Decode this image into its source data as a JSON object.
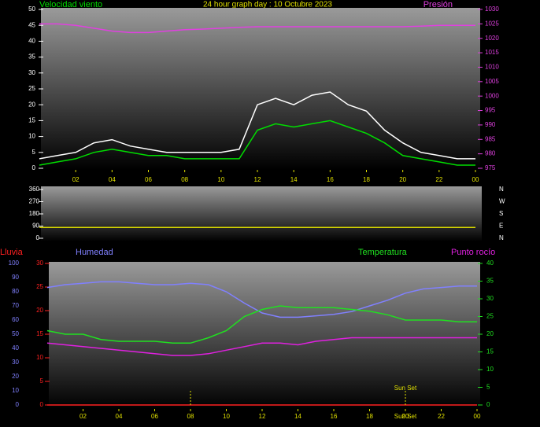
{
  "charts": [
    {
      "type": "line",
      "title": "24 hour graph day : 10 Octubre 2023",
      "x": [
        0,
        1,
        2,
        3,
        4,
        5,
        6,
        7,
        8,
        9,
        10,
        11,
        12,
        13,
        14,
        15,
        16,
        17,
        18,
        19,
        20,
        21,
        22,
        23,
        24
      ],
      "xlim": [
        0,
        24
      ],
      "xticks": [
        {
          "value": 2,
          "label": "02"
        },
        {
          "value": 4,
          "label": "04"
        },
        {
          "value": 6,
          "label": "06"
        },
        {
          "value": 8,
          "label": "08"
        },
        10,
        12,
        14,
        16,
        18,
        20,
        22,
        {
          "value": 24,
          "label": "00"
        }
      ],
      "ylim": [
        0,
        50
      ],
      "yticks": [
        0,
        5,
        10,
        15,
        20,
        25,
        30,
        35,
        40,
        45,
        50
      ],
      "y2lim": [
        975,
        1030
      ],
      "y2ticks": [
        975,
        980,
        985,
        990,
        995,
        1000,
        1005,
        1010,
        1015,
        1020,
        1025,
        1030
      ],
      "grid": false,
      "series": [
        {
          "color": "#ffffff",
          "values": [
            3,
            4,
            5,
            8,
            9,
            7,
            6,
            5,
            5,
            5,
            5,
            6,
            20,
            22,
            20,
            23,
            24,
            20,
            18,
            12,
            8,
            5,
            4,
            3,
            3
          ]
        },
        {
          "name": "Velocidad viento",
          "color": "#00dd00",
          "values": [
            1,
            2,
            3,
            5,
            6,
            5,
            4,
            4,
            3,
            3,
            3,
            3,
            12,
            14,
            13,
            14,
            15,
            13,
            11,
            8,
            4,
            3,
            2,
            1,
            1
          ]
        },
        {
          "name": "Presión",
          "color": "#e040e0",
          "axis": "y2",
          "values": [
            1025,
            1025,
            1024.5,
            1023.5,
            1022.5,
            1022,
            1022,
            1022.5,
            1023,
            1023.2,
            1023.5,
            1023.8,
            1024,
            1024,
            1024,
            1024,
            1024,
            1024,
            1024,
            1024,
            1024,
            1024.2,
            1024.5,
            1024.5,
            1024.5
          ]
        }
      ]
    },
    {
      "type": "line",
      "x": [
        0,
        24
      ],
      "xlim": [
        0,
        24
      ],
      "ylim": [
        0,
        360
      ],
      "yticks": [
        0,
        90,
        180,
        270,
        360
      ],
      "y2lim": [
        0,
        360
      ],
      "y2ticks": [
        {
          "value": 360,
          "label": "N"
        },
        {
          "value": 270,
          "label": "W"
        },
        {
          "value": 180,
          "label": "S"
        },
        {
          "value": 90,
          "label": "E"
        },
        {
          "value": 0,
          "label": "N"
        }
      ],
      "grid": false,
      "series": [
        {
          "color": "#d8d800",
          "values": [
            80,
            80
          ]
        }
      ]
    },
    {
      "type": "line",
      "x": [
        0,
        1,
        2,
        3,
        4,
        5,
        6,
        7,
        8,
        9,
        10,
        11,
        12,
        13,
        14,
        15,
        16,
        17,
        18,
        19,
        20,
        21,
        22,
        23,
        24
      ],
      "xlim": [
        0,
        24
      ],
      "xticks": [
        {
          "value": 2,
          "label": "02"
        },
        {
          "value": 4,
          "label": "04"
        },
        {
          "value": 6,
          "label": "06"
        },
        {
          "value": 8,
          "label": "08"
        },
        10,
        12,
        14,
        16,
        18,
        20,
        22,
        {
          "value": 24,
          "label": "00"
        }
      ],
      "ylim": [
        0,
        30
      ],
      "yticks": [
        0,
        5,
        10,
        15,
        20,
        25,
        30
      ],
      "y2lim": [
        0,
        100
      ],
      "y2ticks": [
        0,
        10,
        20,
        30,
        40,
        50,
        60,
        70,
        80,
        90,
        100
      ],
      "y3lim": [
        0,
        40
      ],
      "y3ticks": [
        0,
        5,
        10,
        15,
        20,
        25,
        30,
        35,
        40
      ],
      "grid": false,
      "series": [
        {
          "name": "Lluvia",
          "color": "#ff2020",
          "values": [
            0,
            0,
            0,
            0,
            0,
            0,
            0,
            0,
            0,
            0,
            0,
            0,
            0,
            0,
            0,
            0,
            0,
            0,
            0,
            0,
            0,
            0,
            0,
            0,
            0
          ]
        },
        {
          "name": "Humedad",
          "color": "#8080ff",
          "axis": "y2",
          "values": [
            83,
            85,
            86,
            87,
            87,
            86,
            85,
            85,
            86,
            85,
            80,
            72,
            65,
            62,
            62,
            63,
            64,
            66,
            70,
            74,
            79,
            82,
            83,
            84,
            84
          ]
        },
        {
          "name": "Temperatura",
          "color": "#20e020",
          "axis": "y3",
          "values": [
            21,
            20,
            20,
            18.5,
            18,
            18,
            18,
            17.5,
            17.5,
            19,
            21,
            25,
            27,
            28,
            27.5,
            27.5,
            27.5,
            27,
            26.5,
            25.5,
            24,
            24,
            24,
            23.5,
            23.5
          ]
        },
        {
          "name": "Punto rocío",
          "color": "#e020e0",
          "axis": "y3",
          "values": [
            17.5,
            17,
            16.5,
            16,
            15.5,
            15,
            14.5,
            14,
            14,
            14.5,
            15.5,
            16.5,
            17.5,
            17.5,
            17,
            18,
            18.5,
            19,
            19,
            19,
            19,
            19,
            19,
            19,
            19
          ]
        }
      ],
      "sun_markers": [
        8,
        20
      ],
      "annotations": [
        {
          "text": "Sun Set",
          "x": 20,
          "place": "top"
        },
        {
          "text": "Sun Set",
          "x": 20,
          "place": "bottom"
        }
      ]
    }
  ]
}
